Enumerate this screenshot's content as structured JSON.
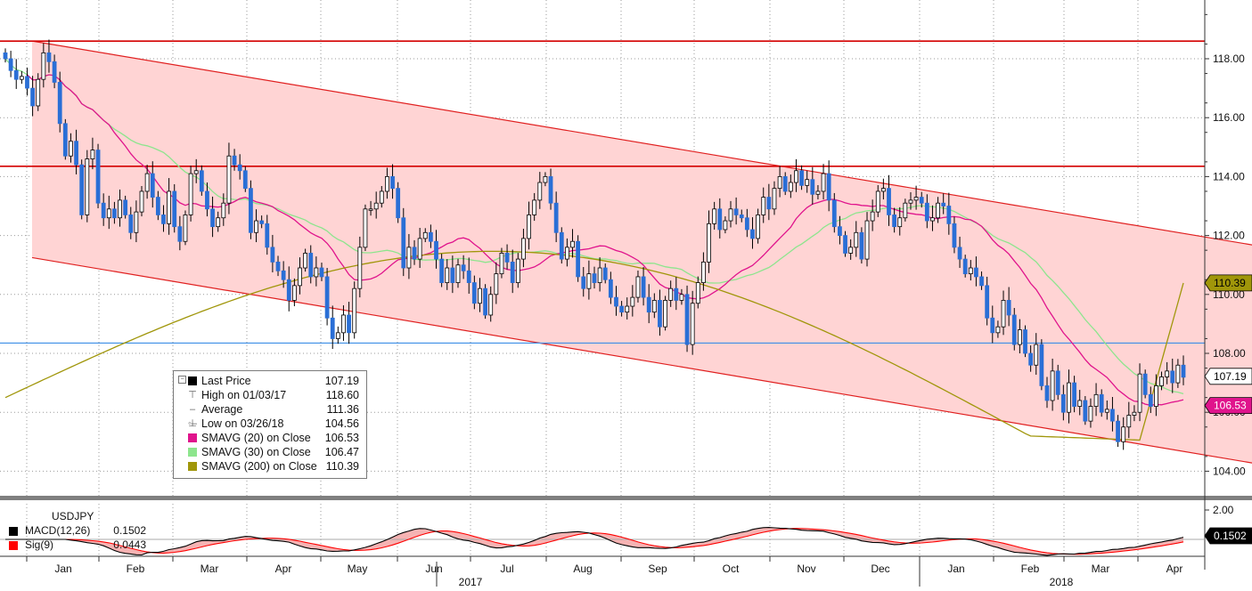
{
  "chart_data": {
    "type": "candlestick",
    "symbol": "USDJPY",
    "y_axis": {
      "ticks": [
        "118.00",
        "116.00",
        "114.00",
        "112.00",
        "110.00",
        "108.00",
        "106.00",
        "104.00"
      ],
      "range": [
        103.2,
        120.0
      ]
    },
    "x_axis": {
      "months": [
        "Jan",
        "Feb",
        "Mar",
        "Apr",
        "May",
        "Jun",
        "Jul",
        "Aug",
        "Sep",
        "Oct",
        "Nov",
        "Dec",
        "Jan",
        "Feb",
        "Mar",
        "Apr"
      ],
      "years": [
        "2017",
        "2018"
      ]
    },
    "price_close": [
      118.0,
      117.6,
      117.3,
      117.4,
      117.0,
      116.4,
      117.3,
      118.2,
      117.9,
      117.2,
      115.8,
      114.7,
      115.2,
      114.4,
      112.7,
      114.6,
      114.9,
      113.1,
      112.6,
      112.9,
      112.6,
      113.2,
      112.7,
      112.1,
      112.8,
      113.5,
      114.1,
      113.3,
      112.7,
      112.4,
      113.5,
      112.3,
      111.8,
      112.7,
      114.1,
      114.2,
      113.5,
      112.9,
      112.3,
      112.6,
      113.1,
      114.7,
      114.4,
      114.2,
      113.6,
      112.1,
      112.5,
      112.4,
      111.6,
      111.1,
      110.8,
      110.5,
      109.8,
      110.3,
      110.9,
      111.4,
      110.6,
      110.9,
      110.6,
      109.2,
      108.5,
      108.7,
      109.3,
      108.7,
      110.2,
      111.6,
      112.9,
      112.9,
      113.1,
      113.5,
      114.0,
      113.6,
      112.6,
      110.9,
      111.6,
      111.2,
      111.9,
      112.1,
      111.8,
      111.2,
      110.4,
      110.9,
      110.4,
      111.0,
      110.8,
      110.4,
      109.7,
      110.2,
      109.3,
      110.0,
      110.7,
      111.4,
      111.1,
      110.4,
      111.2,
      111.9,
      112.7,
      113.2,
      113.8,
      114.0,
      113.1,
      112.1,
      111.2,
      111.6,
      111.8,
      110.6,
      110.2,
      110.7,
      110.4,
      110.9,
      110.5,
      109.9,
      109.6,
      109.4,
      109.6,
      109.9,
      110.6,
      109.9,
      109.4,
      109.8,
      108.9,
      109.8,
      110.2,
      109.8,
      110.0,
      108.3,
      109.7,
      110.4,
      111.1,
      112.4,
      112.9,
      112.2,
      112.5,
      112.9,
      112.7,
      112.6,
      112.2,
      111.9,
      112.7,
      113.3,
      112.9,
      113.6,
      114.0,
      113.5,
      113.8,
      114.2,
      113.7,
      113.9,
      113.4,
      113.5,
      114.1,
      113.2,
      112.3,
      112.0,
      111.4,
      111.6,
      112.1,
      111.2,
      112.5,
      112.8,
      113.5,
      113.6,
      112.7,
      112.3,
      112.6,
      113.1,
      113.2,
      113.3,
      113.1,
      112.5,
      112.6,
      113.1,
      113.0,
      112.4,
      111.6,
      111.2,
      110.7,
      110.9,
      110.6,
      110.3,
      109.2,
      108.7,
      108.9,
      109.8,
      109.3,
      108.3,
      108.8,
      108.0,
      107.6,
      108.3,
      106.9,
      106.4,
      107.4,
      106.6,
      106.0,
      107.0,
      106.2,
      106.4,
      105.7,
      106.2,
      106.6,
      106.0,
      106.1,
      105.7,
      105.0,
      105.5,
      105.9,
      106.0,
      107.3,
      106.6,
      106.2,
      106.9,
      107.2,
      107.4,
      107.0,
      107.6,
      107.19
    ],
    "sma20_close": 106.53,
    "sma30_close": 106.47,
    "sma200_close": 110.39,
    "last_price_label": "107.19",
    "horizontal_levels": [
      {
        "value": 118.6,
        "color": "#d40000"
      },
      {
        "value": 114.35,
        "color": "#d40000"
      },
      {
        "value": 108.35,
        "color": "#3c8ee6"
      }
    ],
    "channel": {
      "upper": [
        {
          "date": "01/03/17",
          "value": 118.6
        },
        {
          "date": "04/06/18",
          "value": 111.95
        }
      ],
      "lower": [
        {
          "date": "01/03/17",
          "value": 111.25
        },
        {
          "date": "04/06/18",
          "value": 104.55
        }
      ],
      "fill": "#ffd4d4"
    },
    "legend": [
      {
        "label": "Last Price",
        "value": "107.19",
        "color": "#000000",
        "icon": "square"
      },
      {
        "label": "High on 01/03/17",
        "value": "118.60",
        "color": "",
        "icon": "high-marker"
      },
      {
        "label": "Average",
        "value": "111.36",
        "color": "",
        "icon": "average-marker"
      },
      {
        "label": "Low on 03/26/18",
        "value": "104.56",
        "color": "",
        "icon": "low-marker"
      },
      {
        "label": "SMAVG (20) on Close",
        "value": "106.53",
        "color": "#e0148c",
        "icon": "square"
      },
      {
        "label": "SMAVG (30) on Close",
        "value": "106.47",
        "color": "#8de58d",
        "icon": "square"
      },
      {
        "label": "SMAVG (200) on Close",
        "value": "110.39",
        "color": "#a0960a",
        "icon": "square"
      }
    ],
    "price_badges": [
      {
        "value": "110.39",
        "bg": "#a0960a",
        "fg": "#000000",
        "level": 110.39
      },
      {
        "value": "107.19",
        "bg": "#ffffff",
        "fg": "#000000",
        "level": 107.19
      },
      {
        "value": "106.53",
        "bg": "#e0148c",
        "fg": "#ffffff",
        "level": 106.53
      }
    ],
    "macd": {
      "title": "USDJPY",
      "y_tick": "2.00",
      "legend": [
        {
          "label": "MACD(12,26)",
          "value": "0.1502",
          "color": "#000000"
        },
        {
          "label": "Sig(9)",
          "value": "0.0443",
          "color": "#ff0000"
        }
      ],
      "badge": "0.1502"
    },
    "colors": {
      "up": "#000000",
      "down": "#2a6fd6",
      "sma20": "#e0148c",
      "sma30": "#8de58d",
      "sma200": "#a0960a"
    }
  }
}
